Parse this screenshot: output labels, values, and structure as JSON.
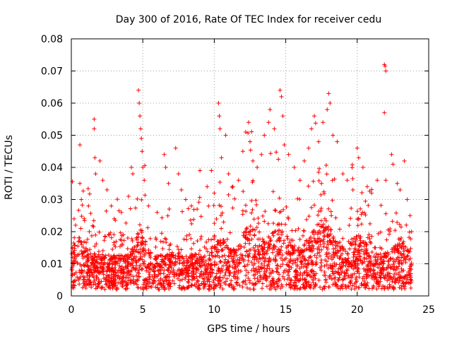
{
  "chart_data": {
    "type": "scatter",
    "title": "Day 300 of 2016, Rate Of TEC Index for receiver cedu",
    "xlabel": "GPS time / hours",
    "ylabel": "ROTI / TECUs",
    "xlim": [
      0,
      25
    ],
    "ylim": [
      0,
      0.08
    ],
    "xticks": [
      0,
      5,
      10,
      15,
      20,
      25
    ],
    "xtick_labels": [
      "0",
      "5",
      "10",
      "15",
      "20",
      "25"
    ],
    "yticks": [
      0,
      0.01,
      0.02,
      0.03,
      0.04,
      0.05,
      0.06,
      0.07,
      0.08
    ],
    "ytick_labels": [
      "0",
      "0.01",
      "0.02",
      "0.03",
      "0.04",
      "0.05",
      "0.06",
      "0.07",
      "0.08"
    ],
    "grid": true,
    "marker": "+",
    "color": "#ff0000",
    "x_data_range": [
      0,
      23.8
    ],
    "series": [
      {
        "name": "ROTI",
        "points": [
          [
            0.1,
            0.015
          ],
          [
            0.3,
            0.022
          ],
          [
            0.6,
            0.047
          ],
          [
            0.6,
            0.035
          ],
          [
            0.7,
            0.03
          ],
          [
            0.9,
            0.024
          ],
          [
            1.2,
            0.028
          ],
          [
            1.6,
            0.055
          ],
          [
            1.6,
            0.052
          ],
          [
            1.65,
            0.043
          ],
          [
            1.7,
            0.038
          ],
          [
            2.0,
            0.042
          ],
          [
            2.2,
            0.036
          ],
          [
            2.5,
            0.033
          ],
          [
            2.8,
            0.028
          ],
          [
            3.0,
            0.024
          ],
          [
            3.5,
            0.026
          ],
          [
            4.0,
            0.031
          ],
          [
            4.2,
            0.04
          ],
          [
            4.3,
            0.038
          ],
          [
            4.7,
            0.064
          ],
          [
            4.75,
            0.06
          ],
          [
            4.8,
            0.056
          ],
          [
            4.85,
            0.052
          ],
          [
            4.9,
            0.049
          ],
          [
            4.95,
            0.045
          ],
          [
            5.0,
            0.04
          ],
          [
            5.1,
            0.036
          ],
          [
            5.4,
            0.028
          ],
          [
            6.0,
            0.026
          ],
          [
            6.5,
            0.044
          ],
          [
            6.6,
            0.04
          ],
          [
            6.8,
            0.035
          ],
          [
            7.3,
            0.046
          ],
          [
            7.5,
            0.038
          ],
          [
            7.7,
            0.033
          ],
          [
            8.0,
            0.03
          ],
          [
            8.4,
            0.028
          ],
          [
            8.8,
            0.027
          ],
          [
            9.0,
            0.039
          ],
          [
            9.5,
            0.034
          ],
          [
            9.8,
            0.039
          ],
          [
            10.0,
            0.032
          ],
          [
            10.3,
            0.06
          ],
          [
            10.35,
            0.056
          ],
          [
            10.4,
            0.052
          ],
          [
            10.5,
            0.043
          ],
          [
            10.8,
            0.05
          ],
          [
            11.0,
            0.038
          ],
          [
            11.3,
            0.034
          ],
          [
            11.7,
            0.036
          ],
          [
            12.0,
            0.045
          ],
          [
            12.2,
            0.051
          ],
          [
            12.4,
            0.054
          ],
          [
            12.5,
            0.048
          ],
          [
            12.7,
            0.042
          ],
          [
            13.0,
            0.04
          ],
          [
            13.3,
            0.044
          ],
          [
            13.5,
            0.05
          ],
          [
            13.8,
            0.054
          ],
          [
            13.9,
            0.058
          ],
          [
            14.2,
            0.052
          ],
          [
            14.6,
            0.064
          ],
          [
            14.7,
            0.062
          ],
          [
            14.8,
            0.056
          ],
          [
            14.9,
            0.047
          ],
          [
            15.2,
            0.044
          ],
          [
            15.6,
            0.04
          ],
          [
            16.0,
            0.036
          ],
          [
            16.3,
            0.042
          ],
          [
            16.6,
            0.046
          ],
          [
            16.8,
            0.052
          ],
          [
            17.0,
            0.056
          ],
          [
            17.3,
            0.048
          ],
          [
            17.6,
            0.054
          ],
          [
            17.9,
            0.058
          ],
          [
            18.0,
            0.063
          ],
          [
            18.1,
            0.06
          ],
          [
            18.3,
            0.05
          ],
          [
            18.6,
            0.048
          ],
          [
            19.0,
            0.038
          ],
          [
            19.3,
            0.036
          ],
          [
            19.7,
            0.033
          ],
          [
            20.0,
            0.046
          ],
          [
            20.1,
            0.043
          ],
          [
            20.4,
            0.04
          ],
          [
            20.7,
            0.034
          ],
          [
            21.0,
            0.032
          ],
          [
            21.4,
            0.036
          ],
          [
            21.9,
            0.072
          ],
          [
            21.95,
            0.0715
          ],
          [
            22.0,
            0.07
          ],
          [
            21.9,
            0.057
          ],
          [
            22.0,
            0.036
          ],
          [
            22.4,
            0.044
          ],
          [
            22.5,
            0.041
          ],
          [
            22.8,
            0.035
          ],
          [
            23.0,
            0.033
          ],
          [
            23.3,
            0.042
          ],
          [
            23.5,
            0.03
          ],
          [
            23.7,
            0.025
          ],
          [
            23.8,
            0.02
          ]
        ]
      }
    ]
  }
}
